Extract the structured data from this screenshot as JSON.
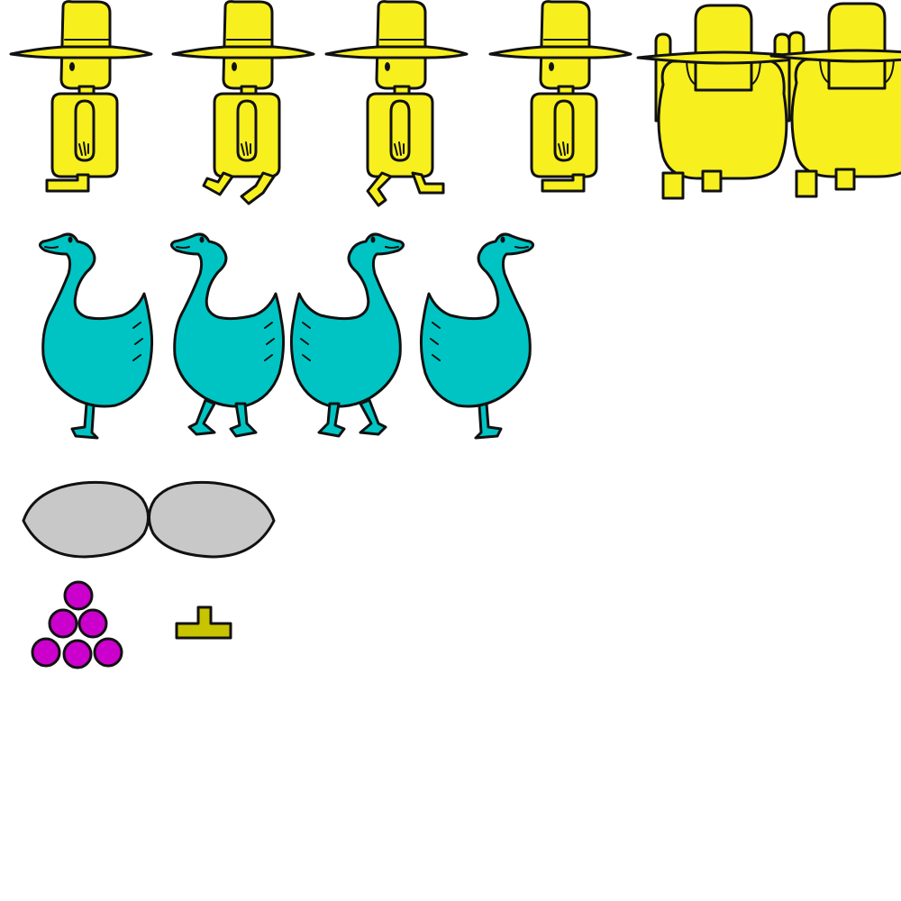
{
  "sheet": {
    "kind": "sprite-sheet",
    "background": "#ffffff"
  },
  "palette": {
    "farmer": "#f7f01e",
    "goose": "#00c4c4",
    "egg": "#c8c8c8",
    "berries": "#cc00cc",
    "peg": "#c8c400",
    "outline": "#111111"
  },
  "sprites": {
    "farmer_frames": [
      "side-stand",
      "side-walk-1",
      "side-walk-2",
      "side-stand-2",
      "back-arms-up-1",
      "back-arms-up-2"
    ],
    "goose_frames": [
      "stand-right",
      "walk-right-1",
      "walk-left-1",
      "stand-left"
    ],
    "egg_frames": [
      "egg-left-tilt",
      "egg-right-tilt"
    ],
    "items": [
      "berry-pile",
      "peg"
    ]
  }
}
